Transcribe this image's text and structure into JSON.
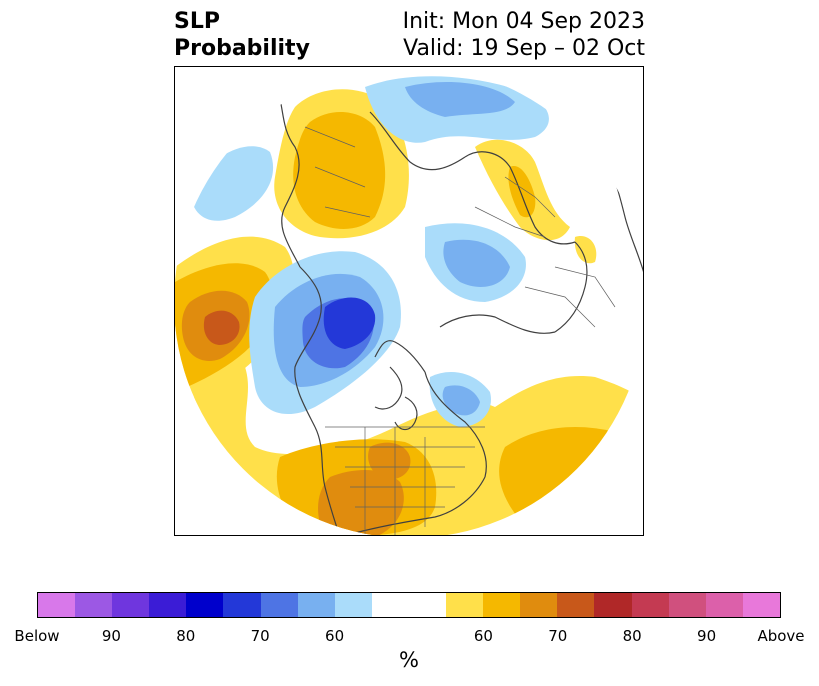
{
  "title": {
    "left_line1": "SLP",
    "left_line2": "Probability",
    "right_line1": "Init: Mon 04 Sep 2023",
    "right_line2": "Valid: 19 Sep – 02 Oct"
  },
  "colorbar": {
    "units": "%",
    "below_colors": [
      "#d878ea",
      "#9c58e4",
      "#6f36de",
      "#3b1cd6",
      "#0000cc",
      "#2338d8",
      "#4e74e4",
      "#78b0f0",
      "#aadcfa"
    ],
    "neutral_color": "#ffffff",
    "above_colors": [
      "#ffe04a",
      "#f5b800",
      "#e08c0e",
      "#c8581a",
      "#b02828",
      "#c43a52",
      "#d0507e",
      "#dc60aa",
      "#e878da"
    ],
    "tick_labels": [
      "Below",
      "90",
      "80",
      "70",
      "60",
      "60",
      "70",
      "80",
      "90",
      "Above"
    ]
  }
}
